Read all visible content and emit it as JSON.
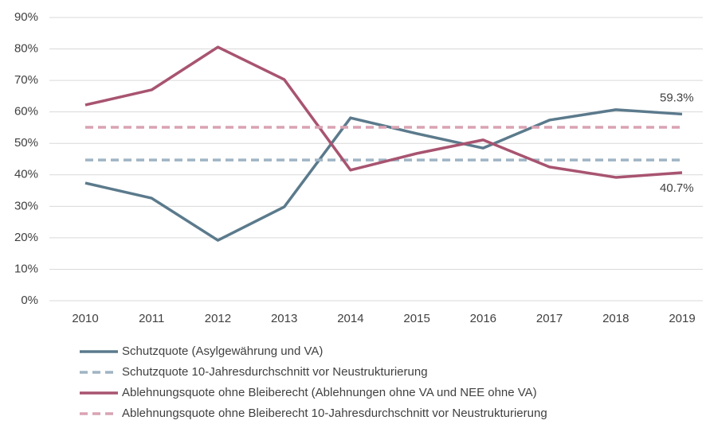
{
  "chart_data": {
    "type": "line",
    "categories": [
      "2010",
      "2011",
      "2012",
      "2013",
      "2014",
      "2015",
      "2016",
      "2017",
      "2018",
      "2019"
    ],
    "series": [
      {
        "name": "Schutzquote (Asylgewährung und VA)",
        "color": "#5b7a8c",
        "dashed": false,
        "values": [
          37.4,
          32.6,
          19.2,
          29.8,
          58.1,
          53.1,
          48.5,
          57.4,
          60.7,
          59.3
        ],
        "value_labels": [
          null,
          null,
          null,
          null,
          null,
          null,
          null,
          null,
          null,
          "59.3%"
        ]
      },
      {
        "name": "Schutzquote 10-Jahresdurchschnitt vor Neustrukturierung",
        "color": "#9fb4c4",
        "dashed": true,
        "values": [
          44.7,
          44.7,
          44.7,
          44.7,
          44.7,
          44.7,
          44.7,
          44.7,
          44.7,
          44.7
        ]
      },
      {
        "name": "Ablehnungsquote ohne Bleiberecht (Ablehnungen ohne VA und NEE ohne VA)",
        "color": "#a85470",
        "dashed": false,
        "values": [
          62.2,
          67.0,
          80.6,
          70.3,
          41.5,
          46.8,
          51.1,
          42.5,
          39.2,
          40.7
        ],
        "value_labels": [
          null,
          null,
          null,
          null,
          null,
          null,
          null,
          null,
          null,
          "40.7%"
        ]
      },
      {
        "name": "Ablehnungsquote ohne Bleiberecht 10-Jahresdurchschnitt vor Neustrukturierung",
        "color": "#d9a3b3",
        "dashed": true,
        "values": [
          55.1,
          55.1,
          55.1,
          55.1,
          55.1,
          55.1,
          55.1,
          55.1,
          55.1,
          55.1
        ]
      }
    ],
    "ylim": [
      0,
      90
    ],
    "yticks": [
      {
        "value": 0,
        "label": "0%"
      },
      {
        "value": 10,
        "label": "10%"
      },
      {
        "value": 20,
        "label": "20%"
      },
      {
        "value": 30,
        "label": "30%"
      },
      {
        "value": 40,
        "label": "40%"
      },
      {
        "value": 50,
        "label": "50%"
      },
      {
        "value": 60,
        "label": "60%"
      },
      {
        "value": 70,
        "label": "70%"
      },
      {
        "value": 80,
        "label": "80%"
      },
      {
        "value": 90,
        "label": "90%"
      }
    ],
    "grid": true,
    "legend": "bottom"
  }
}
